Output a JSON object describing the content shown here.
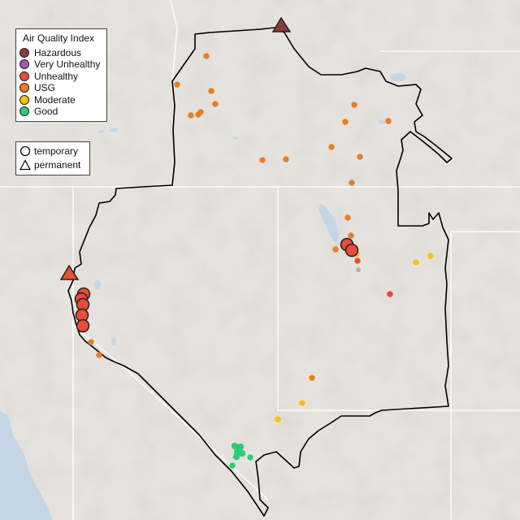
{
  "legend": {
    "title": "Air Quality Index",
    "categories": [
      {
        "label": "Hazardous",
        "color": "#8b3a3a"
      },
      {
        "label": "Very Unhealthy",
        "color": "#9b59b6"
      },
      {
        "label": "Unhealthy",
        "color": "#e74c3c"
      },
      {
        "label": "USG",
        "color": "#e67e22"
      },
      {
        "label": "Moderate",
        "color": "#f1c40f"
      },
      {
        "label": "Good",
        "color": "#2ecc71"
      }
    ],
    "monitor_types": [
      {
        "label": "temporary",
        "shape": "circle"
      },
      {
        "label": "permanent",
        "shape": "triangle"
      }
    ]
  },
  "colors": {
    "land": "#e6e3df",
    "water": "#c3d6e6",
    "boundary": "#000000",
    "state_lines": "#ffffff"
  }
}
